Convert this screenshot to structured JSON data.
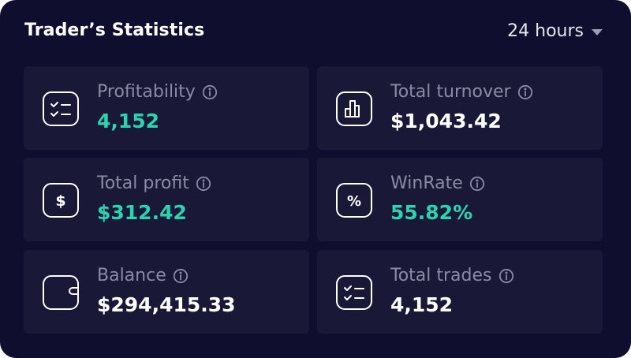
{
  "header": {
    "title": "Trader’s Statistics",
    "period": "24 hours"
  },
  "stats": [
    {
      "label": "Profitability",
      "value": "4,152",
      "icon": "checklist-icon",
      "value_color": "#2bd4b1"
    },
    {
      "label": "Total turnover",
      "value": "$1,043.42",
      "icon": "bar-chart-icon",
      "value_color": "#ffffff"
    },
    {
      "label": "Total profit",
      "value": "$312.42",
      "icon": "dollar-icon",
      "value_color": "#2bd4b1"
    },
    {
      "label": "WinRate",
      "value": "55.82%",
      "icon": "percent-icon",
      "value_color": "#2bd4b1"
    },
    {
      "label": "Balance",
      "value": "$294,415.33",
      "icon": "wallet-icon",
      "value_color": "#ffffff"
    },
    {
      "label": "Total trades",
      "value": "4,152",
      "icon": "checklist-icon",
      "value_color": "#ffffff"
    }
  ],
  "colors": {
    "background": "#0f0e2e",
    "card": "#191937",
    "accent_green": "#2bd4b1",
    "label": "#8b8aa6"
  }
}
